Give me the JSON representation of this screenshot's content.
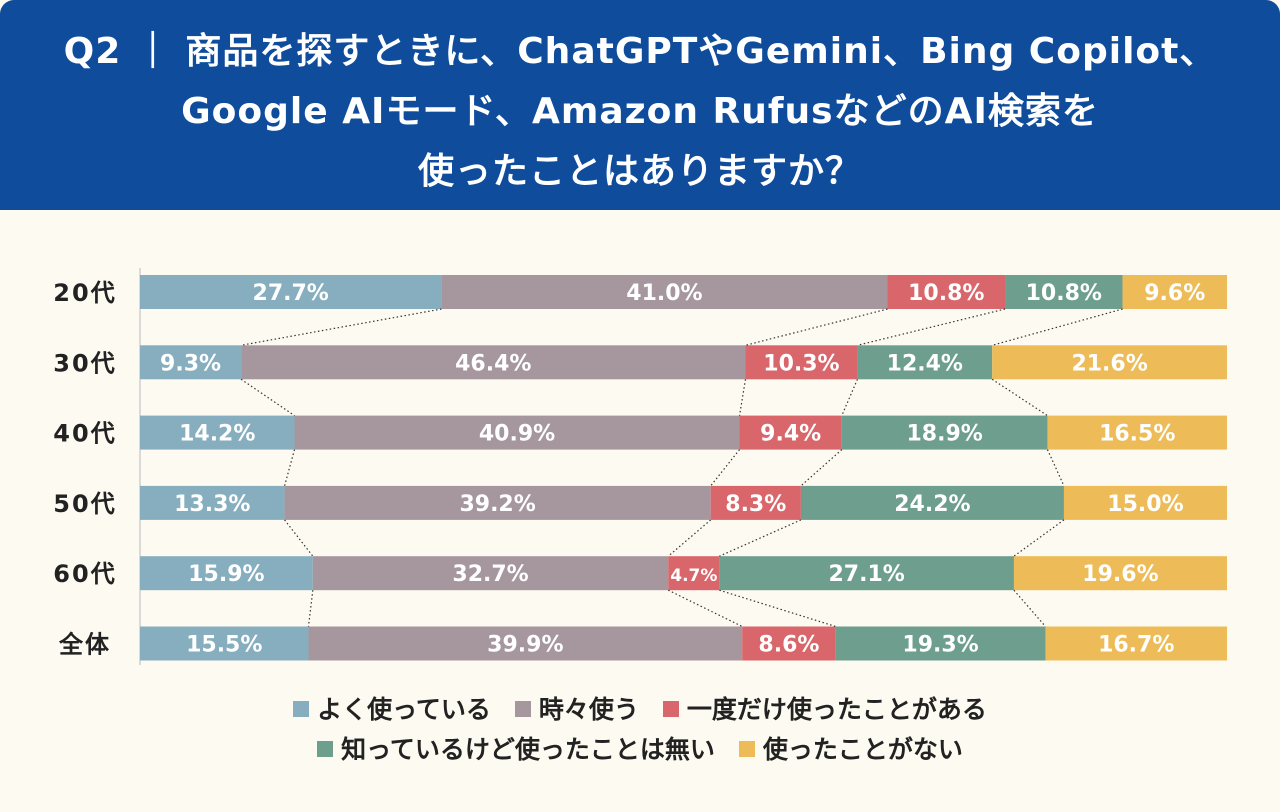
{
  "header": {
    "line1": "Q2 ｜ 商品を探すときに、ChatGPTやGemini、Bing Copilot、",
    "line2": "Google AIモード、Amazon RufusなどのAI検索を",
    "line3": "使ったことはありますか？"
  },
  "chart_data": {
    "type": "bar",
    "orientation": "horizontal",
    "stacked": true,
    "normalized": true,
    "categories": [
      "20代",
      "30代",
      "40代",
      "50代",
      "60代",
      "全体"
    ],
    "series": [
      {
        "name": "よく使っている",
        "color": "#86aebe",
        "values": [
          27.7,
          9.3,
          14.2,
          13.3,
          15.9,
          15.5
        ]
      },
      {
        "name": "時々使う",
        "color": "#a6979f",
        "values": [
          41.0,
          46.4,
          40.9,
          39.2,
          32.7,
          39.9
        ]
      },
      {
        "name": "一度だけ使ったことがある",
        "color": "#d9666a",
        "values": [
          10.8,
          10.3,
          9.4,
          8.3,
          4.7,
          8.6
        ]
      },
      {
        "name": "知っているけど使ったことは無い",
        "color": "#6e9e8e",
        "values": [
          10.8,
          12.4,
          18.9,
          24.2,
          27.1,
          19.3
        ]
      },
      {
        "name": "使ったことがない",
        "color": "#edbc58",
        "values": [
          9.6,
          21.6,
          16.5,
          15.0,
          19.6,
          16.7
        ]
      }
    ],
    "value_suffix": "%",
    "legend_position": "bottom",
    "connector_lines": "dotted",
    "grid": false
  }
}
